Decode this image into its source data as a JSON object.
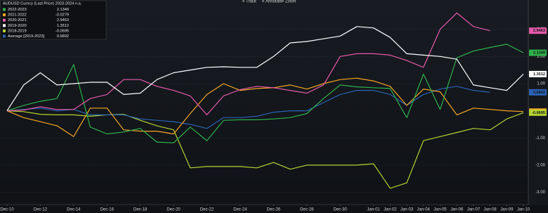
{
  "chart_data": {
    "type": "line",
    "legend_title": "AUDUSD Curncy (Last Price) 2023-2024 n.a.",
    "toolbar": [
      "Track",
      "Annotate",
      "Zoom"
    ],
    "categories": [
      "Dec-10",
      null,
      "Dec-12",
      null,
      "Dec-14",
      null,
      "Dec-16",
      null,
      "Dec-18",
      null,
      "Dec-20",
      null,
      "Dec-22",
      null,
      "Dec-24",
      null,
      "Dec-26",
      null,
      "Dec-28",
      null,
      "Dec-30",
      null,
      "Jan-01",
      "Jan-02",
      "Jan-03",
      "Jan-04",
      "Jan-05",
      "Jan-06",
      "Jan-07",
      "Jan-08",
      "Jan-09",
      "Jan-10"
    ],
    "series": [
      {
        "name": "2022-2023",
        "color": "#2fb24c",
        "values": [
          0,
          0.2,
          0.35,
          0.45,
          1.7,
          -0.6,
          -0.85,
          -0.78,
          -0.65,
          -1.15,
          -1.18,
          -0.6,
          -1.1,
          -0.35,
          -0.33,
          -0.33,
          -0.3,
          -0.25,
          -0.1,
          0.45,
          0.95,
          0.88,
          0.85,
          0.82,
          -0.25,
          1.35,
          0.05,
          1.95,
          2.2,
          2.33,
          2.45,
          2.1349
        ]
      },
      {
        "name": "2021-2022",
        "color": "#f5a623",
        "values": [
          0,
          -0.25,
          -0.4,
          -0.55,
          -0.95,
          0.1,
          0.1,
          -0.7,
          -0.75,
          -0.75,
          -0.85,
          -0.1,
          0.6,
          1.0,
          0.75,
          0.82,
          0.85,
          0.95,
          0.8,
          1.0,
          1.15,
          1.2,
          1.1,
          0.9,
          0.2,
          0.8,
          0.7,
          -0.15,
          0.1,
          0.05,
          0.0,
          -0.0279
        ]
      },
      {
        "name": "2020-2021",
        "color": "#e45aa9",
        "values": [
          0,
          0.03,
          0.15,
          0.05,
          0.05,
          0.45,
          0.6,
          1.15,
          1.15,
          0.9,
          0.75,
          0.55,
          -0.15,
          0.55,
          0.78,
          0.9,
          0.85,
          0.75,
          0.65,
          0.95,
          2.0,
          2.1,
          2.1,
          2.05,
          1.85,
          1.6,
          3.0,
          3.6,
          3.1,
          2.9463,
          null,
          null
        ]
      },
      {
        "name": "2019-2020",
        "color": "#ffffff",
        "values": [
          0,
          0.95,
          1.4,
          0.95,
          1.0,
          1.05,
          1.05,
          0.6,
          0.65,
          1.15,
          1.4,
          1.5,
          1.6,
          1.62,
          1.6,
          1.6,
          2.0,
          2.5,
          2.55,
          2.65,
          2.75,
          3.1,
          3.05,
          2.7,
          2.1,
          2.05,
          2.0,
          1.9,
          0.95,
          0.85,
          0.75,
          1.3512
        ]
      },
      {
        "name": "2018-2019",
        "color": "#b4d332",
        "values": [
          0,
          -0.03,
          -0.13,
          -0.15,
          -0.15,
          -0.2,
          -0.15,
          -0.13,
          -0.35,
          -0.55,
          -0.7,
          -2.1,
          -2.05,
          -2.05,
          -2.05,
          -2.1,
          -1.9,
          -2.15,
          -2.0,
          -2.0,
          -2.0,
          -2.0,
          -1.95,
          -2.85,
          -2.65,
          -1.1,
          -0.95,
          -0.8,
          -0.65,
          -0.7,
          -0.3,
          -0.0695
        ]
      },
      {
        "name": "Average [2019-2023]",
        "color": "#2a63b4",
        "values": [
          0,
          0.05,
          0.1,
          0.0,
          0.05,
          -0.15,
          -0.15,
          -0.15,
          -0.3,
          -0.35,
          -0.4,
          -0.5,
          -0.65,
          -0.25,
          -0.25,
          -0.2,
          -0.05,
          0.0,
          0.0,
          0.3,
          0.6,
          0.75,
          0.75,
          0.6,
          0.2,
          0.6,
          0.8,
          0.9,
          0.75,
          0.6802,
          null,
          null
        ]
      }
    ],
    "ylim": [
      -3.45,
      3.87
    ],
    "yticks": [
      {
        "value": -3,
        "label": "-3.00"
      },
      {
        "value": -2,
        "label": "-2.00"
      },
      {
        "value": -1,
        "label": "-1.00"
      },
      {
        "value": 1,
        "label": "1.00"
      },
      {
        "value": 2,
        "label": "2.00"
      },
      {
        "value": 3,
        "label": "3.00"
      }
    ],
    "grid": true
  }
}
